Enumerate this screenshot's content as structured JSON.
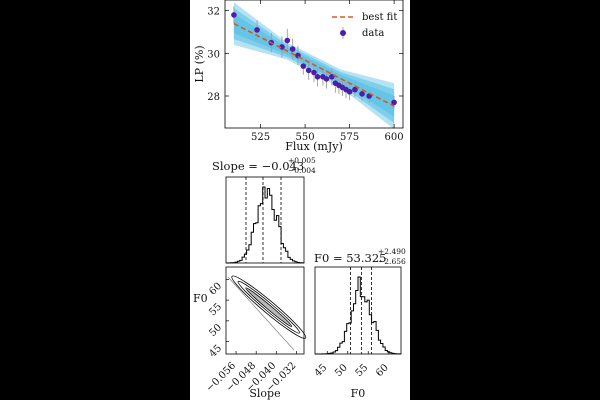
{
  "chart_data": [
    {
      "type": "scatter",
      "panel": "fit",
      "xlabel": "Flux (mJy)",
      "ylabel": "LP (%)",
      "xlim": [
        505,
        605
      ],
      "ylim": [
        26.5,
        32.5
      ],
      "xticks": [
        "525",
        "550",
        "575",
        "600"
      ],
      "yticks": [
        "28",
        "30",
        "32"
      ],
      "grid": false,
      "legend_position": "top-right",
      "series": [
        {
          "name": "data",
          "marker": "circle",
          "color": "#4b1fa8",
          "errorbar_color": "#9aa0a6",
          "x": [
            510,
            523,
            531,
            537,
            540,
            543,
            546,
            549,
            552,
            555,
            557,
            560,
            562,
            565,
            567,
            569,
            571,
            573,
            575,
            578,
            582,
            586,
            600
          ],
          "y": [
            31.8,
            31.1,
            30.5,
            30.3,
            30.6,
            30.2,
            29.9,
            29.4,
            29.2,
            29.1,
            28.9,
            28.9,
            28.8,
            28.9,
            28.6,
            28.5,
            28.4,
            28.3,
            28.2,
            28.3,
            28.1,
            28.0,
            27.7
          ],
          "yerr": [
            0.4,
            0.45,
            0.45,
            0.5,
            0.55,
            0.5,
            0.45,
            0.4,
            0.45,
            0.45,
            0.45,
            0.4,
            0.45,
            0.4,
            0.45,
            0.4,
            0.4,
            0.4,
            0.4,
            0.35,
            0.35,
            0.3,
            0.3
          ]
        },
        {
          "name": "best fit",
          "style": "dashed",
          "color": "#e0561f",
          "slope": -0.043,
          "intercept": 53.325,
          "band_color": "#5bc1e6"
        }
      ]
    },
    {
      "type": "histogram",
      "panel": "slope-marginal",
      "title_lhs": "Slope = −0.043",
      "title_up": "+0.005",
      "title_down": "−0.004",
      "median": -0.043,
      "quantiles": [
        -0.047,
        -0.038
      ]
    },
    {
      "type": "contour",
      "panel": "joint",
      "xlabel": "Slope",
      "ylabel": "F0",
      "xlim": [
        -0.06,
        -0.029
      ],
      "ylim": [
        42,
        63
      ],
      "xticks": [
        "−0.056",
        "−0.048",
        "−0.040",
        "−0.032"
      ],
      "yticks": [
        "45",
        "50",
        "55",
        "60"
      ]
    },
    {
      "type": "histogram",
      "panel": "F0-marginal",
      "xlabel": "F0",
      "title_lhs": "F0 = 53.325",
      "title_up": "+2.490",
      "title_down": "−2.656",
      "xlim": [
        42,
        63
      ],
      "xticks": [
        "45",
        "50",
        "55",
        "60"
      ],
      "median": 53.325,
      "quantiles": [
        50.669,
        55.815
      ]
    }
  ]
}
